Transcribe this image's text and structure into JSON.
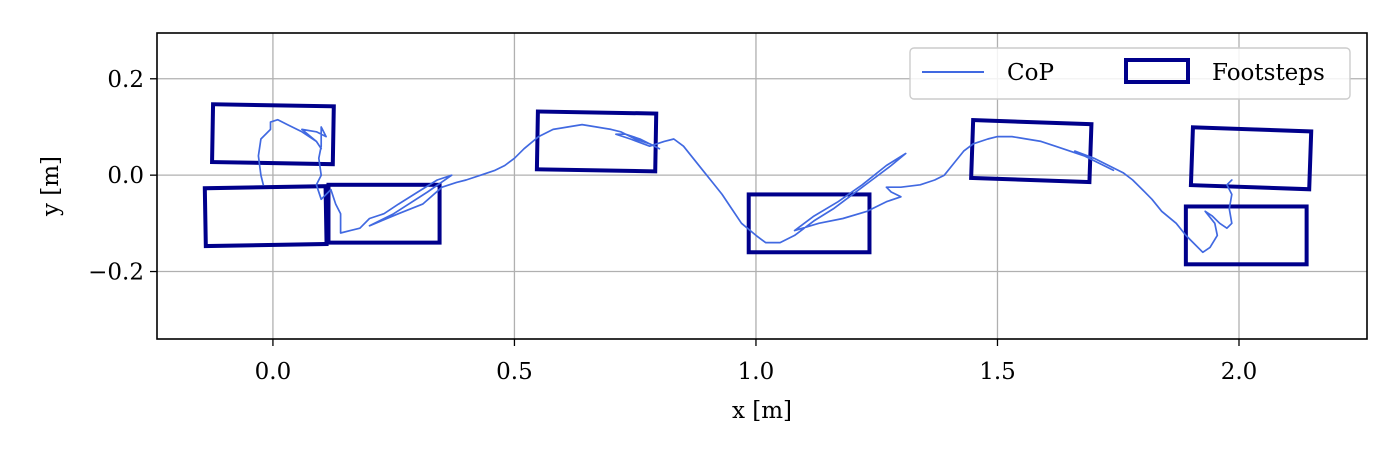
{
  "chart_data": {
    "type": "line",
    "xlabel": "x [m]",
    "ylabel": "y [m]",
    "xlim": [
      -0.24,
      2.265
    ],
    "ylim": [
      -0.34,
      0.295
    ],
    "xticks": [
      0.0,
      0.5,
      1.0,
      1.5,
      2.0
    ],
    "xtick_labels": [
      "0.0",
      "0.5",
      "1.0",
      "1.5",
      "2.0"
    ],
    "yticks": [
      -0.2,
      0.0,
      0.2
    ],
    "ytick_labels": [
      "−0.2",
      "0.0",
      "0.2"
    ],
    "grid": true,
    "legend": {
      "placement": "top-right",
      "entries": [
        {
          "label": "CoP",
          "kind": "line"
        },
        {
          "label": "Footsteps",
          "kind": "rectangle"
        }
      ]
    },
    "colors": {
      "cop": "#4169e1",
      "footsteps": "#00008b",
      "grid": "#b0b0b0"
    },
    "series": [
      {
        "name": "CoP",
        "points": [
          [
            -0.02,
            -0.02
          ],
          [
            -0.025,
            0.0
          ],
          [
            -0.03,
            0.04
          ],
          [
            -0.025,
            0.075
          ],
          [
            -0.005,
            0.095
          ],
          [
            -0.005,
            0.11
          ],
          [
            0.01,
            0.115
          ],
          [
            0.03,
            0.105
          ],
          [
            0.06,
            0.09
          ],
          [
            0.09,
            0.07
          ],
          [
            0.1,
            0.055
          ],
          [
            0.09,
            0.07
          ],
          [
            0.06,
            0.095
          ],
          [
            0.09,
            0.09
          ],
          [
            0.11,
            0.08
          ],
          [
            0.1,
            0.1
          ],
          [
            0.1,
            0.085
          ],
          [
            0.1,
            0.06
          ],
          [
            0.095,
            0.035
          ],
          [
            0.1,
            0.0
          ],
          [
            0.09,
            -0.02
          ],
          [
            0.1,
            -0.05
          ],
          [
            0.12,
            -0.03
          ],
          [
            0.13,
            -0.06
          ],
          [
            0.14,
            -0.08
          ],
          [
            0.14,
            -0.1
          ],
          [
            0.14,
            -0.12
          ],
          [
            0.16,
            -0.115
          ],
          [
            0.18,
            -0.11
          ],
          [
            0.2,
            -0.09
          ],
          [
            0.23,
            -0.08
          ],
          [
            0.26,
            -0.06
          ],
          [
            0.3,
            -0.035
          ],
          [
            0.34,
            -0.01
          ],
          [
            0.37,
            0.0
          ],
          [
            0.32,
            -0.035
          ],
          [
            0.25,
            -0.08
          ],
          [
            0.2,
            -0.105
          ],
          [
            0.26,
            -0.08
          ],
          [
            0.31,
            -0.06
          ],
          [
            0.35,
            -0.025
          ],
          [
            0.38,
            -0.015
          ],
          [
            0.4,
            -0.01
          ],
          [
            0.43,
            0.0
          ],
          [
            0.46,
            0.01
          ],
          [
            0.48,
            0.02
          ],
          [
            0.5,
            0.035
          ],
          [
            0.52,
            0.055
          ],
          [
            0.55,
            0.08
          ],
          [
            0.58,
            0.095
          ],
          [
            0.61,
            0.1
          ],
          [
            0.64,
            0.105
          ],
          [
            0.67,
            0.1
          ],
          [
            0.7,
            0.095
          ],
          [
            0.72,
            0.09
          ],
          [
            0.75,
            0.075
          ],
          [
            0.78,
            0.065
          ],
          [
            0.8,
            0.055
          ],
          [
            0.76,
            0.075
          ],
          [
            0.73,
            0.085
          ],
          [
            0.71,
            0.085
          ],
          [
            0.74,
            0.075
          ],
          [
            0.78,
            0.06
          ],
          [
            0.81,
            0.07
          ],
          [
            0.83,
            0.075
          ],
          [
            0.85,
            0.06
          ],
          [
            0.87,
            0.035
          ],
          [
            0.89,
            0.01
          ],
          [
            0.91,
            -0.015
          ],
          [
            0.93,
            -0.04
          ],
          [
            0.95,
            -0.07
          ],
          [
            0.97,
            -0.1
          ],
          [
            1.0,
            -0.125
          ],
          [
            1.02,
            -0.14
          ],
          [
            1.05,
            -0.14
          ],
          [
            1.08,
            -0.125
          ],
          [
            1.12,
            -0.095
          ],
          [
            1.16,
            -0.07
          ],
          [
            1.2,
            -0.04
          ],
          [
            1.24,
            -0.01
          ],
          [
            1.28,
            0.02
          ],
          [
            1.31,
            0.045
          ],
          [
            1.27,
            0.02
          ],
          [
            1.22,
            -0.02
          ],
          [
            1.17,
            -0.055
          ],
          [
            1.12,
            -0.085
          ],
          [
            1.08,
            -0.115
          ],
          [
            1.13,
            -0.1
          ],
          [
            1.18,
            -0.09
          ],
          [
            1.23,
            -0.075
          ],
          [
            1.27,
            -0.055
          ],
          [
            1.3,
            -0.045
          ],
          [
            1.28,
            -0.035
          ],
          [
            1.27,
            -0.025
          ],
          [
            1.3,
            -0.025
          ],
          [
            1.34,
            -0.02
          ],
          [
            1.37,
            -0.01
          ],
          [
            1.39,
            0.0
          ],
          [
            1.41,
            0.025
          ],
          [
            1.43,
            0.05
          ],
          [
            1.45,
            0.065
          ],
          [
            1.48,
            0.075
          ],
          [
            1.5,
            0.08
          ],
          [
            1.53,
            0.08
          ],
          [
            1.56,
            0.075
          ],
          [
            1.59,
            0.07
          ],
          [
            1.62,
            0.06
          ],
          [
            1.65,
            0.05
          ],
          [
            1.68,
            0.04
          ],
          [
            1.71,
            0.025
          ],
          [
            1.74,
            0.01
          ],
          [
            1.7,
            0.03
          ],
          [
            1.66,
            0.05
          ],
          [
            1.7,
            0.035
          ],
          [
            1.73,
            0.02
          ],
          [
            1.76,
            0.005
          ],
          [
            1.78,
            -0.01
          ],
          [
            1.8,
            -0.03
          ],
          [
            1.82,
            -0.05
          ],
          [
            1.84,
            -0.075
          ],
          [
            1.87,
            -0.1
          ],
          [
            1.89,
            -0.125
          ],
          [
            1.91,
            -0.145
          ],
          [
            1.925,
            -0.16
          ],
          [
            1.94,
            -0.15
          ],
          [
            1.955,
            -0.125
          ],
          [
            1.95,
            -0.1
          ],
          [
            1.93,
            -0.075
          ],
          [
            1.945,
            -0.085
          ],
          [
            1.96,
            -0.1
          ],
          [
            1.975,
            -0.11
          ],
          [
            1.985,
            -0.1
          ],
          [
            1.98,
            -0.07
          ],
          [
            1.985,
            -0.04
          ],
          [
            1.975,
            -0.02
          ],
          [
            1.985,
            -0.01
          ]
        ]
      }
    ],
    "footsteps": [
      {
        "center": [
          0.0,
          0.085
        ],
        "size": [
          0.25,
          0.12
        ],
        "angle_deg": -1
      },
      {
        "center": [
          -0.015,
          -0.085
        ],
        "size": [
          0.25,
          0.12
        ],
        "angle_deg": 1
      },
      {
        "center": [
          0.23,
          -0.08
        ],
        "size": [
          0.23,
          0.12
        ],
        "angle_deg": 0
      },
      {
        "center": [
          0.67,
          0.07
        ],
        "size": [
          0.245,
          0.12
        ],
        "angle_deg": -1
      },
      {
        "center": [
          1.11,
          -0.1
        ],
        "size": [
          0.25,
          0.12
        ],
        "angle_deg": 0
      },
      {
        "center": [
          1.57,
          0.05
        ],
        "size": [
          0.245,
          0.12
        ],
        "angle_deg": -2
      },
      {
        "center": [
          2.025,
          0.035
        ],
        "size": [
          0.245,
          0.12
        ],
        "angle_deg": -2
      },
      {
        "center": [
          2.015,
          -0.125
        ],
        "size": [
          0.25,
          0.12
        ],
        "angle_deg": 0
      }
    ]
  }
}
